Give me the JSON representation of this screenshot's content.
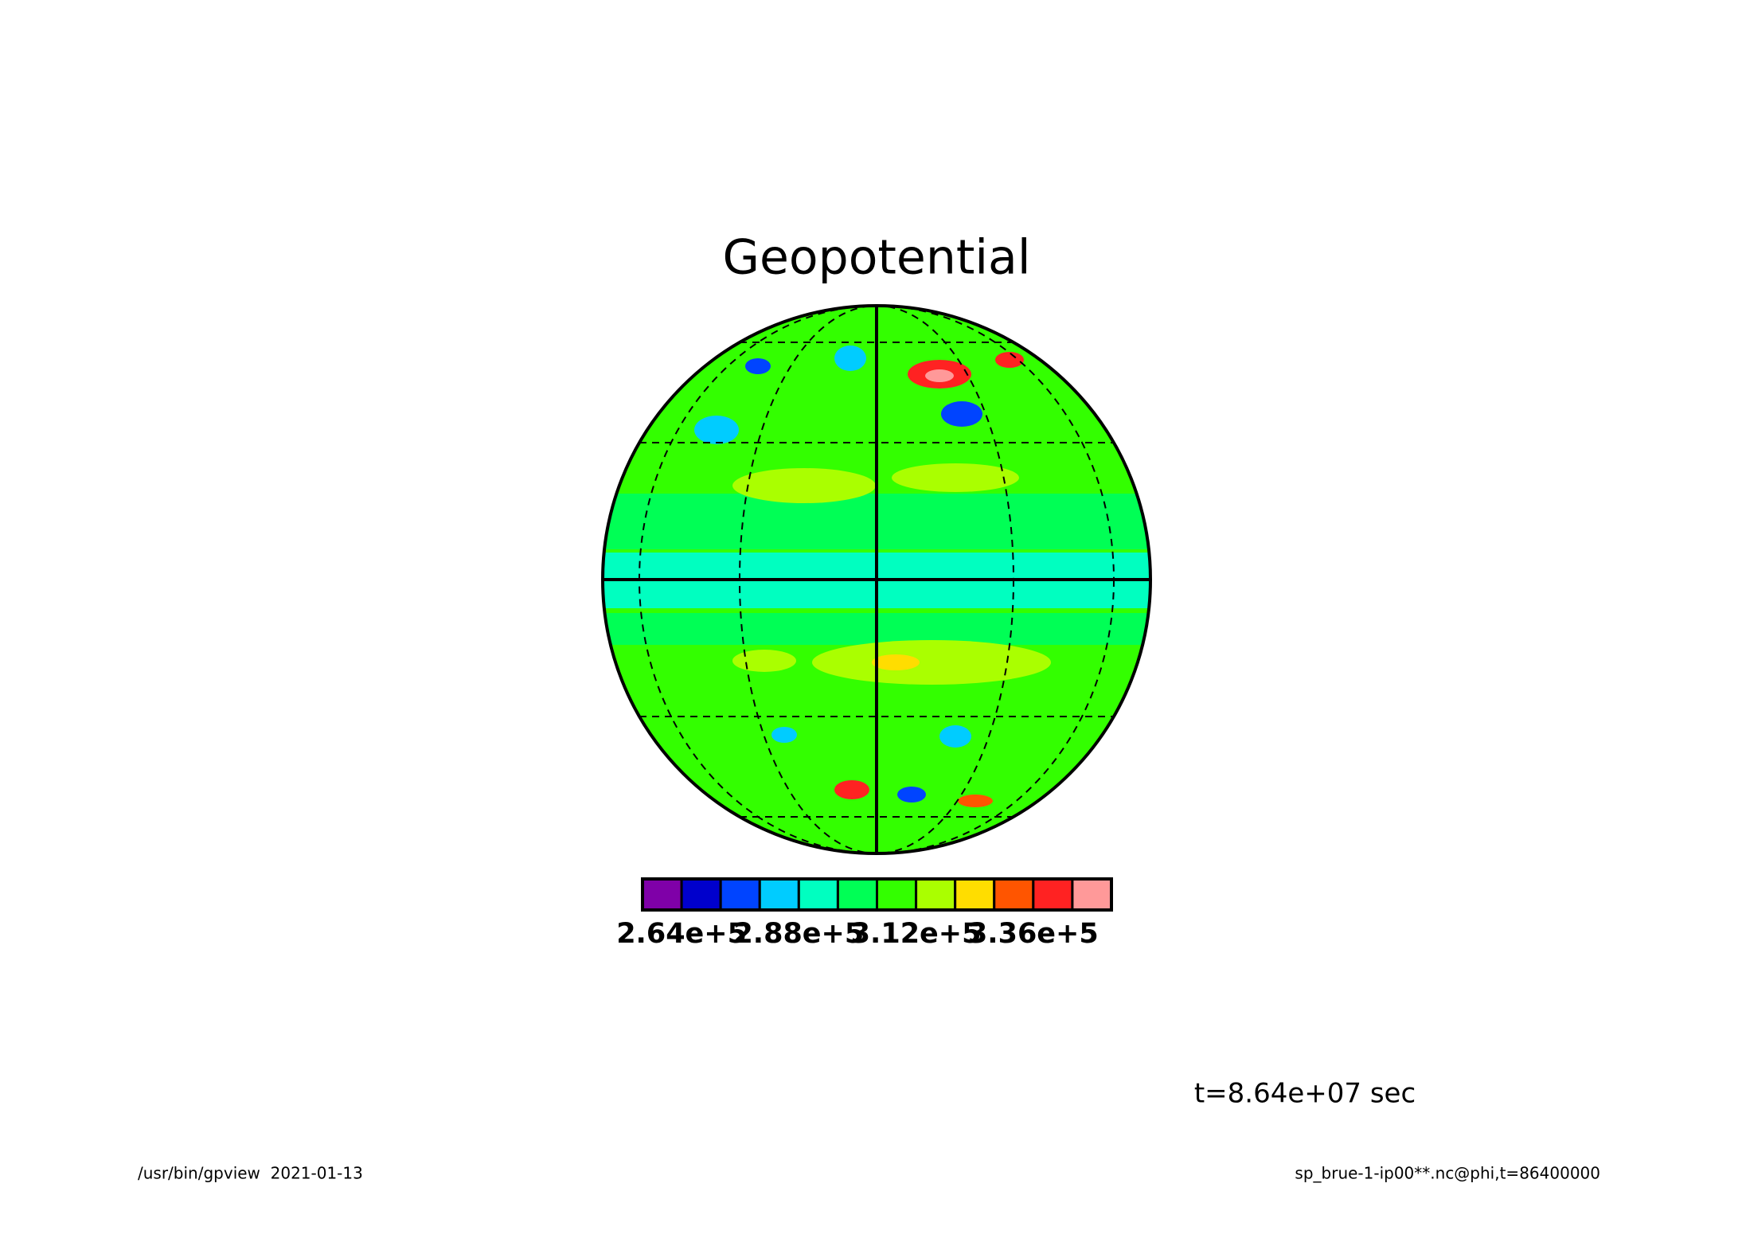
{
  "chart_data": {
    "type": "contour",
    "title": "Geopotential",
    "colorbar": {
      "colors": [
        "#7f00a8",
        "#0000cc",
        "#0044ff",
        "#00ccff",
        "#00ffc0",
        "#00ff55",
        "#33ff00",
        "#aaff00",
        "#ffdd00",
        "#ff5500",
        "#ff2222",
        "#ff9999"
      ],
      "clim": [
        256000,
        352000
      ],
      "ticks": [
        {
          "value": 264000,
          "label": "2.64e+5"
        },
        {
          "value": 288000,
          "label": "2.88e+5"
        },
        {
          "value": 312000,
          "label": "3.12e+5"
        },
        {
          "value": 336000,
          "label": "3.36e+5"
        }
      ]
    },
    "time_label": "t=8.64e+07 sec",
    "footer_left": "/usr/bin/gpview  2021-01-13",
    "footer_right": "sp_brue-1-ip00**.nc@phi,t=86400000"
  }
}
